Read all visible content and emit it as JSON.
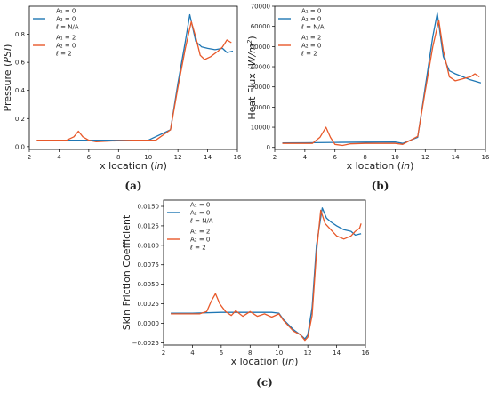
{
  "chart_data": [
    {
      "type": "line",
      "panel_label": "(a)",
      "xlabel": "x location (in)",
      "ylabel": "Pressure (PSI)",
      "xlim": [
        2,
        16
      ],
      "ylim": [
        -0.02,
        1.0
      ],
      "xticks": [
        2,
        4,
        6,
        8,
        10,
        12,
        14,
        16
      ],
      "yticks": [
        0.0,
        0.2,
        0.4,
        0.6,
        0.8
      ],
      "ytick_labels": [
        "0.0",
        "0.2",
        "0.4",
        "0.6",
        "0.8"
      ],
      "legend_position": "top-left",
      "series": [
        {
          "name": "A1 = 0, A2 = 0, ℓ = N/A",
          "legend_lines": [
            "A₁ = 0",
            "A₂ = 0",
            "ℓ = N/A"
          ],
          "color": "#1f77b4",
          "x": [
            2.5,
            4.0,
            6.0,
            8.0,
            10.0,
            11.5,
            12.0,
            12.5,
            12.8,
            13.2,
            13.6,
            14.0,
            14.5,
            15.0,
            15.3,
            15.7
          ],
          "y": [
            0.045,
            0.045,
            0.045,
            0.045,
            0.045,
            0.12,
            0.45,
            0.75,
            0.94,
            0.75,
            0.71,
            0.7,
            0.69,
            0.7,
            0.67,
            0.68
          ]
        },
        {
          "name": "A1 = 2, A2 = 0, ℓ = 2",
          "legend_lines": [
            "A₁ = 2",
            "A₂ = 0",
            "ℓ = 2"
          ],
          "color": "#e8592a",
          "x": [
            2.5,
            4.5,
            5.0,
            5.3,
            5.6,
            6.0,
            6.5,
            7.5,
            9.0,
            10.5,
            11.5,
            12.0,
            12.5,
            12.9,
            13.2,
            13.5,
            13.8,
            14.2,
            14.7,
            15.0,
            15.3,
            15.6
          ],
          "y": [
            0.045,
            0.045,
            0.07,
            0.11,
            0.07,
            0.045,
            0.035,
            0.04,
            0.045,
            0.045,
            0.12,
            0.42,
            0.7,
            0.89,
            0.78,
            0.65,
            0.62,
            0.64,
            0.68,
            0.71,
            0.76,
            0.74
          ]
        }
      ]
    },
    {
      "type": "line",
      "panel_label": "(b)",
      "xlabel": "x location (in)",
      "ylabel": "Heat Flux (W/m2)",
      "xlim": [
        2,
        16
      ],
      "ylim": [
        -1000,
        70000
      ],
      "xticks": [
        2,
        4,
        6,
        8,
        10,
        12,
        14,
        16
      ],
      "yticks": [
        0,
        10000,
        20000,
        30000,
        40000,
        50000,
        60000,
        70000
      ],
      "ytick_labels": [
        "0",
        "10000",
        "20000",
        "30000",
        "40000",
        "50000",
        "60000",
        "70000"
      ],
      "legend_position": "top-left",
      "series": [
        {
          "name": "A1 = 0, A2 = 0, ℓ = N/A",
          "legend_lines": [
            "A₁ = 0",
            "A₂ = 0",
            "ℓ = N/A"
          ],
          "color": "#1f77b4",
          "x": [
            2.5,
            4.0,
            6.0,
            8.0,
            10.0,
            10.5,
            11.5,
            12.0,
            12.5,
            12.8,
            13.2,
            13.6,
            14.0,
            14.5,
            15.0,
            15.7
          ],
          "y": [
            2200,
            2300,
            2500,
            2600,
            2700,
            2000,
            5000,
            30000,
            55000,
            66500,
            45000,
            38000,
            36500,
            35000,
            33500,
            32000
          ]
        },
        {
          "name": "A1 = 2, A2 = 0, ℓ = 2",
          "legend_lines": [
            "A₁ = 2",
            "A₂ = 0",
            "ℓ = 2"
          ],
          "color": "#e8592a",
          "x": [
            2.5,
            4.5,
            5.0,
            5.4,
            5.7,
            6.0,
            6.5,
            7.0,
            8.0,
            10.0,
            10.5,
            11.5,
            12.0,
            12.5,
            12.9,
            13.2,
            13.6,
            14.0,
            14.5,
            15.0,
            15.3,
            15.6
          ],
          "y": [
            2000,
            2000,
            5000,
            10000,
            5000,
            1500,
            1000,
            1800,
            2000,
            2000,
            1500,
            5500,
            28000,
            50000,
            63000,
            48000,
            35000,
            33000,
            34000,
            35000,
            36500,
            35000
          ]
        }
      ]
    },
    {
      "type": "line",
      "panel_label": "(c)",
      "xlabel": "x location (in)",
      "ylabel": "Skin Friction Coefficient",
      "xlim": [
        2,
        16
      ],
      "ylim": [
        -0.0028,
        0.0158
      ],
      "xticks": [
        2,
        4,
        6,
        8,
        10,
        12,
        14,
        16
      ],
      "yticks": [
        -0.0025,
        0.0,
        0.0025,
        0.005,
        0.0075,
        0.01,
        0.0125,
        0.015
      ],
      "ytick_labels": [
        "−0.0025",
        "0.0000",
        "0.0025",
        "0.0050",
        "0.0075",
        "0.0100",
        "0.0125",
        "0.0150"
      ],
      "legend_position": "top-left",
      "series": [
        {
          "name": "A1 = 0, A2 = 0, ℓ = N/A",
          "legend_lines": [
            "A₁ = 0",
            "A₂ = 0",
            "ℓ = N/A"
          ],
          "color": "#1f77b4",
          "x": [
            2.5,
            4.0,
            6.0,
            8.0,
            9.5,
            10.0,
            10.3,
            11.0,
            11.5,
            11.8,
            12.0,
            12.3,
            12.6,
            13.0,
            13.3,
            13.6,
            14.0,
            14.5,
            15.0,
            15.3,
            15.7
          ],
          "y": [
            0.0013,
            0.0013,
            0.0014,
            0.0014,
            0.0014,
            0.0013,
            0.0005,
            -0.0008,
            -0.0015,
            -0.002,
            -0.0015,
            0.002,
            0.01,
            0.0148,
            0.0135,
            0.013,
            0.0125,
            0.012,
            0.0118,
            0.0113,
            0.0115
          ]
        },
        {
          "name": "A1 = 2, A2 = 0, ℓ = 2",
          "legend_lines": [
            "A₁ = 2",
            "A₂ = 0",
            "ℓ = 2"
          ],
          "color": "#e8592a",
          "x": [
            2.5,
            4.5,
            5.0,
            5.3,
            5.6,
            5.9,
            6.3,
            6.7,
            7.0,
            7.5,
            8.0,
            8.5,
            9.0,
            9.5,
            10.0,
            10.3,
            11.0,
            11.5,
            11.8,
            12.0,
            12.3,
            12.6,
            12.9,
            13.2,
            13.6,
            14.0,
            14.5,
            15.0,
            15.3,
            15.6,
            15.7
          ],
          "y": [
            0.0012,
            0.0012,
            0.0015,
            0.0028,
            0.0038,
            0.0025,
            0.0015,
            0.001,
            0.0016,
            0.0009,
            0.0015,
            0.0009,
            0.0012,
            0.0008,
            0.0012,
            0.0004,
            -0.001,
            -0.0015,
            -0.0022,
            -0.0018,
            0.001,
            0.009,
            0.0145,
            0.0128,
            0.012,
            0.0112,
            0.0108,
            0.0112,
            0.0118,
            0.0122,
            0.0128
          ]
        }
      ]
    }
  ]
}
